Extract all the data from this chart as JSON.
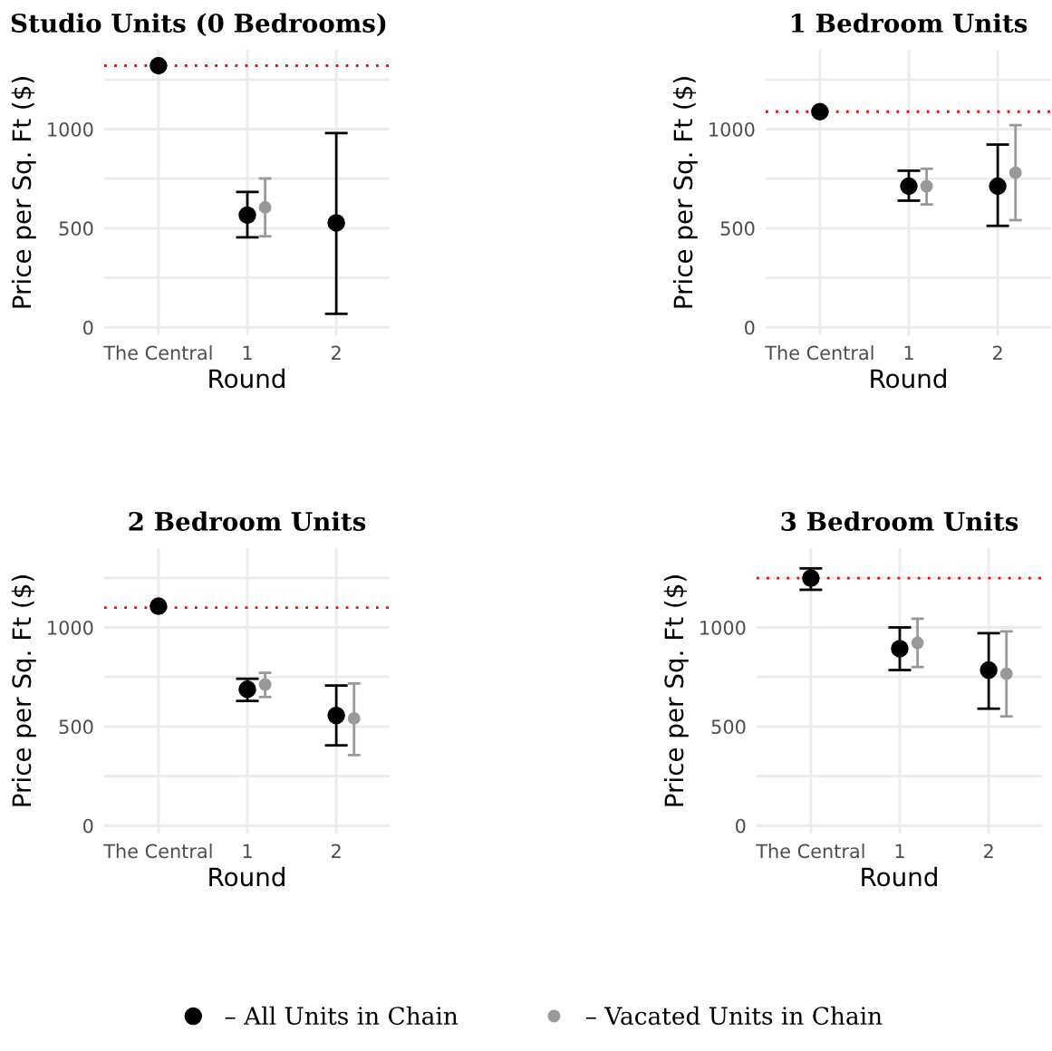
{
  "chart_data": [
    {
      "type": "scatter",
      "title": "Studio Units (0 Bedrooms)",
      "xlabel": "Round",
      "ylabel": "Price per Sq. Ft ($)",
      "categories": [
        "The Central",
        "1",
        "2"
      ],
      "ylim": [
        -40,
        1400
      ],
      "yticks": [
        0,
        {
          "value": 250,
          "label": null
        },
        500,
        {
          "value": 750,
          "label": null
        },
        1000,
        {
          "value": 1250,
          "label": null
        }
      ],
      "grid": true,
      "legend": "bottom",
      "marker": "circle",
      "series": [
        {
          "name": "– All Units in Chain",
          "color": "#000000",
          "values": [
            1320,
            566,
            527
          ],
          "errors": [
            null,
            [
              454,
              683
            ],
            [
              68,
              980
            ]
          ]
        },
        {
          "name": "– Vacated Units in Chain",
          "color": "#999999",
          "values": [
            null,
            605,
            null
          ],
          "errors": [
            null,
            [
              459,
              751
            ],
            null
          ]
        }
      ],
      "ref_lines": [
        {
          "axis": "y",
          "value": 1320,
          "color": "#ff0000",
          "line_style": "dotted"
        }
      ]
    },
    {
      "type": "scatter",
      "title": "1 Bedroom Units",
      "xlabel": "Round",
      "ylabel": "Price per Sq. Ft ($)",
      "categories": [
        "The Central",
        "1",
        "2"
      ],
      "ylim": [
        -40,
        1400
      ],
      "yticks": [
        0,
        {
          "value": 250,
          "label": null
        },
        500,
        {
          "value": 750,
          "label": null
        },
        1000,
        {
          "value": 1250,
          "label": null
        }
      ],
      "grid": true,
      "marker": "circle",
      "series": [
        {
          "color": "#000000",
          "values": [
            1088,
            712,
            712
          ],
          "errors": [
            null,
            [
              639,
              790
            ],
            [
              512,
              922
            ]
          ]
        },
        {
          "color": "#999999",
          "values": [
            null,
            712,
            780
          ],
          "errors": [
            null,
            [
              620,
              800
            ],
            [
              541,
              1020
            ]
          ]
        }
      ],
      "ref_lines": [
        {
          "axis": "y",
          "value": 1088,
          "color": "#ff0000",
          "line_style": "dotted"
        }
      ]
    },
    {
      "type": "scatter",
      "title": "2 Bedroom Units",
      "xlabel": "Round",
      "ylabel": "Price per Sq. Ft ($)",
      "categories": [
        "The Central",
        "1",
        "2"
      ],
      "ylim": [
        -40,
        1400
      ],
      "yticks": [
        0,
        {
          "value": 250,
          "label": null
        },
        500,
        {
          "value": 750,
          "label": null
        },
        1000,
        {
          "value": 1250,
          "label": null
        }
      ],
      "grid": true,
      "marker": "circle",
      "series": [
        {
          "color": "#000000",
          "values": [
            1107,
            688,
            556
          ],
          "errors": [
            null,
            [
              629,
              741
            ],
            [
              405,
              707
            ]
          ]
        },
        {
          "color": "#999999",
          "values": [
            null,
            712,
            541
          ],
          "errors": [
            null,
            [
              649,
              771
            ],
            [
              356,
              717
            ]
          ]
        }
      ],
      "ref_lines": [
        {
          "axis": "y",
          "value": 1100,
          "color": "#ff0000",
          "line_style": "dotted"
        }
      ]
    },
    {
      "type": "scatter",
      "title": "3 Bedroom Units",
      "xlabel": "Round",
      "ylabel": "Price per Sq. Ft ($)",
      "categories": [
        "The Central",
        "1",
        "2"
      ],
      "ylim": [
        -40,
        1400
      ],
      "yticks": [
        0,
        {
          "value": 250,
          "label": null
        },
        500,
        {
          "value": 750,
          "label": null
        },
        1000,
        {
          "value": 1250,
          "label": null
        }
      ],
      "grid": true,
      "marker": "circle",
      "series": [
        {
          "color": "#000000",
          "values": [
            1249,
            893,
            785
          ],
          "errors": [
            [
              1190,
              1298
            ],
            [
              785,
              1000
            ],
            [
              590,
              971
            ]
          ]
        },
        {
          "color": "#999999",
          "values": [
            null,
            922,
            766
          ],
          "errors": [
            null,
            [
              800,
              1044
            ],
            [
              551,
              980
            ]
          ]
        }
      ],
      "ref_lines": [
        {
          "axis": "y",
          "value": 1249,
          "color": "#ff0000",
          "line_style": "dotted"
        }
      ]
    }
  ]
}
